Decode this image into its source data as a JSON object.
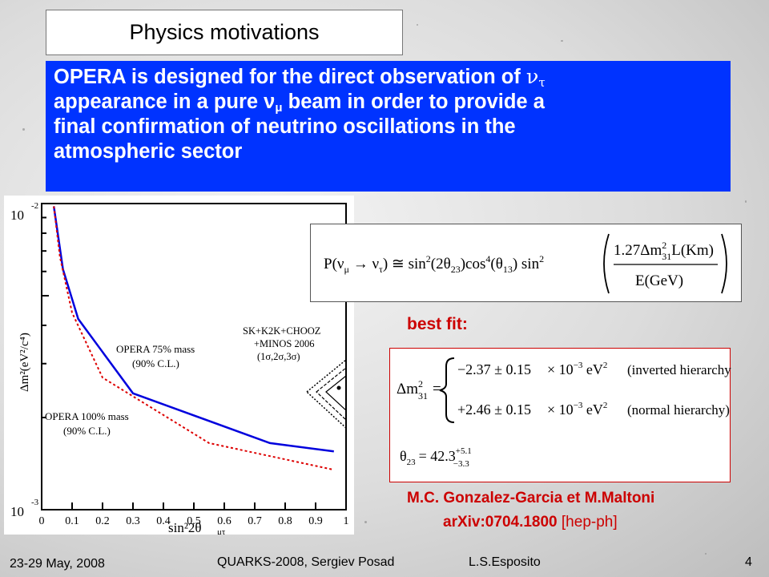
{
  "slide": {
    "title": "Physics motivations",
    "intro_lines": {
      "l1a": "OPERA is designed for the direct observation of ",
      "l1_nu": "ν",
      "l1_sub": "τ",
      "l2a": "appearance in a pure ν",
      "l2_sub": "μ",
      "l2b": " beam in order to provide a",
      "l3": "final confirmation of neutrino oscillations in the",
      "l4": "atmospheric sector"
    },
    "best_fit_label": "best fit:",
    "reference_line1": "M.C. Gonzalez-Garcia et M.Maltoni",
    "reference_arxiv": "arXiv:0704.1800",
    "reference_category": " [hep-ph]",
    "footer": {
      "date": "23-29 May, 2008",
      "conference": "QUARKS-2008, Sergiev Posad",
      "author": "L.S.Esposito",
      "page": "4"
    }
  },
  "formula": {
    "lhs": "P(ν",
    "mu": "μ",
    "arrow": " → ν",
    "tau": "τ",
    "rhs1": ") ≅ sin",
    "sq": "2",
    "rhs2": "(2θ",
    "t23": "23",
    "rhs3": ")cos",
    "four": "4",
    "rhs4": "(θ",
    "t13": "13",
    "rhs5": ") sin",
    "num1": "1.27Δm",
    "num_sup": "2",
    "num_sub": "31",
    "num2": "L(Km)",
    "den": "E(GeV)"
  },
  "fit": {
    "lhs": "Δm",
    "lhs_sup": "2",
    "lhs_sub": "31",
    "eq": "=",
    "row1_val": "−2.37 ± 0.15",
    "row2_val": "+2.46 ± 0.15",
    "times": "× 10",
    "exp": "−3",
    "unit": " eV",
    "unit_sup": "2",
    "row1_note": "(inverted hierarchy)",
    "row2_note": "(normal hierarchy)",
    "theta_lhs": "θ",
    "theta_sub": "23",
    "theta_eq": "= 42.3",
    "theta_up": "+5.1",
    "theta_dn": "−3.3"
  },
  "chart_data": {
    "type": "line",
    "xlabel": "sin²2θ",
    "xlabel_sub": "μτ",
    "ylabel": "Δm²(eV²/c⁴)",
    "x_ticks": [
      "0",
      "0.1",
      "0.2",
      "0.3",
      "0.4",
      "0.5",
      "0.6",
      "0.7",
      "0.8",
      "0.9",
      "1"
    ],
    "y_top_label": "10",
    "y_top_exp": "-2",
    "y_bottom_label": "10",
    "y_bottom_exp": "-3",
    "xlim": [
      0,
      1
    ],
    "ylim": [
      0.001,
      0.01
    ],
    "yscale": "log",
    "series": [
      {
        "name": "OPERA 75% mass",
        "name2": "(90% C.L.)",
        "color": "#0000dd",
        "style": "solid",
        "x": [
          0.04,
          0.07,
          0.12,
          0.3,
          0.75,
          0.96
        ],
        "y": [
          0.0098,
          0.0061,
          0.0042,
          0.0024,
          0.00165,
          0.00155
        ]
      },
      {
        "name": "OPERA 100% mass",
        "name2": "(90% C.L.)",
        "color": "#dd0000",
        "style": "dotted",
        "x": [
          0.04,
          0.06,
          0.1,
          0.2,
          0.55,
          0.96
        ],
        "y": [
          0.0098,
          0.0067,
          0.0044,
          0.0027,
          0.00165,
          0.00135
        ]
      }
    ],
    "annotation": {
      "line1": "SK+K2K+CHOOZ",
      "line2": "+MINOS 2006",
      "line3": "(1σ,2σ,3σ)"
    }
  }
}
